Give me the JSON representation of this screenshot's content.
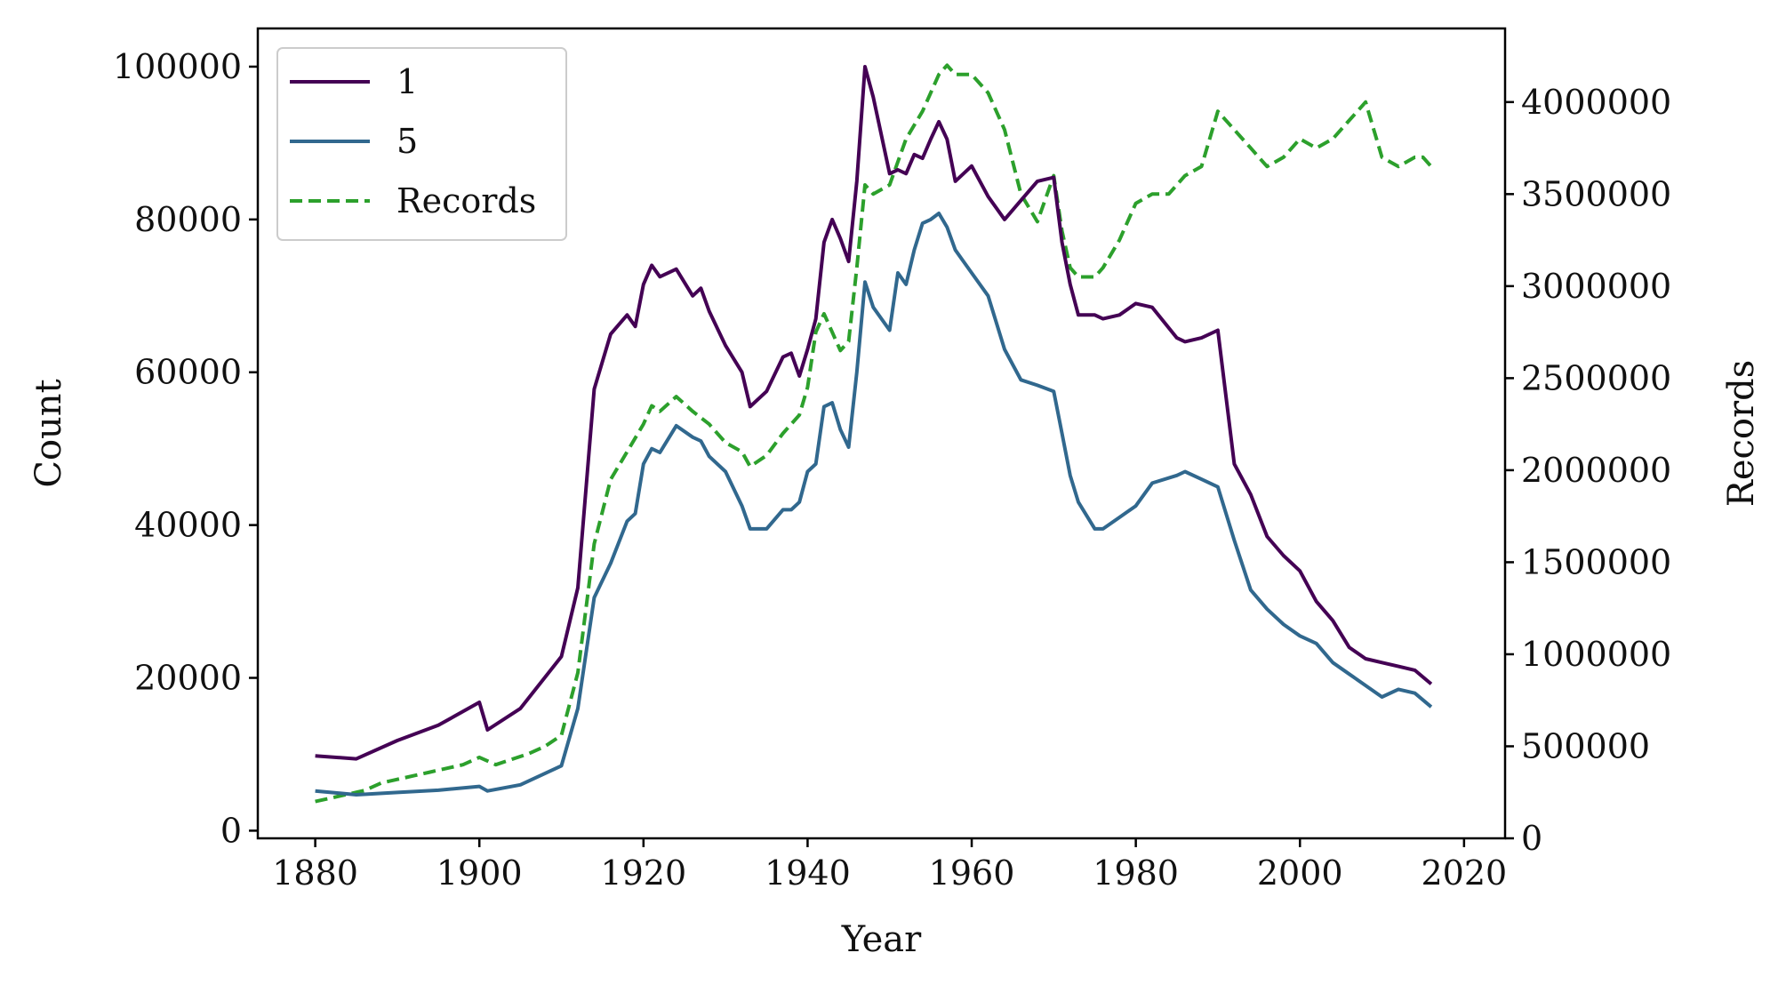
{
  "chart_data": {
    "type": "line",
    "xlabel": "Year",
    "ylabel": "Count",
    "y2label": "Records",
    "xlim": [
      1873,
      2025
    ],
    "ylim": [
      -1000,
      105000
    ],
    "y2lim": [
      0,
      4400000
    ],
    "xticks": [
      1880,
      1900,
      1920,
      1940,
      1960,
      1980,
      2000,
      2020
    ],
    "yticks": [
      0,
      20000,
      40000,
      60000,
      80000,
      100000
    ],
    "y2ticks": [
      0,
      500000,
      1000000,
      1500000,
      2000000,
      2500000,
      3000000,
      3500000,
      4000000
    ],
    "legend": {
      "location": "upper left"
    },
    "grid": false,
    "series": [
      {
        "name": "1",
        "axis": "left",
        "color": "#440154",
        "style": "solid",
        "x": [
          1880,
          1885,
          1890,
          1895,
          1900,
          1901,
          1905,
          1910,
          1912,
          1914,
          1916,
          1918,
          1919,
          1920,
          1921,
          1922,
          1924,
          1926,
          1927,
          1928,
          1930,
          1932,
          1933,
          1935,
          1937,
          1938,
          1939,
          1940,
          1941,
          1942,
          1943,
          1944,
          1945,
          1946,
          1947,
          1948,
          1950,
          1951,
          1952,
          1953,
          1954,
          1955,
          1956,
          1957,
          1958,
          1959,
          1960,
          1962,
          1964,
          1966,
          1968,
          1970,
          1971,
          1972,
          1973,
          1975,
          1976,
          1978,
          1980,
          1982,
          1985,
          1986,
          1988,
          1990,
          1992,
          1994,
          1996,
          1998,
          2000,
          2002,
          2004,
          2006,
          2008,
          2010,
          2012,
          2014,
          2016
        ],
        "y": [
          9800,
          9400,
          11800,
          13800,
          16800,
          13200,
          16000,
          22800,
          31800,
          57800,
          65000,
          67500,
          66000,
          71500,
          74000,
          72500,
          73500,
          70000,
          71000,
          68000,
          63500,
          60000,
          55500,
          57500,
          62000,
          62500,
          59500,
          63000,
          67000,
          77000,
          80000,
          77500,
          74500,
          85000,
          100000,
          96000,
          86000,
          86500,
          86000,
          88500,
          88000,
          90500,
          92800,
          90500,
          85000,
          86000,
          87000,
          83000,
          80000,
          82500,
          85000,
          85500,
          77000,
          71500,
          67500,
          67500,
          67000,
          67500,
          69000,
          68500,
          64500,
          64000,
          64500,
          65500,
          48000,
          44000,
          38500,
          36000,
          34000,
          30000,
          27500,
          24000,
          22500,
          22000,
          21500,
          21000,
          19200
        ]
      },
      {
        "name": "5",
        "axis": "left",
        "color": "#31688e",
        "style": "solid",
        "x": [
          1880,
          1885,
          1890,
          1895,
          1900,
          1901,
          1905,
          1910,
          1912,
          1914,
          1916,
          1918,
          1919,
          1920,
          1921,
          1922,
          1924,
          1926,
          1927,
          1928,
          1930,
          1932,
          1933,
          1935,
          1937,
          1938,
          1939,
          1940,
          1941,
          1942,
          1943,
          1944,
          1945,
          1946,
          1947,
          1948,
          1950,
          1951,
          1952,
          1953,
          1954,
          1955,
          1956,
          1957,
          1958,
          1959,
          1960,
          1962,
          1964,
          1966,
          1968,
          1970,
          1971,
          1972,
          1973,
          1975,
          1976,
          1978,
          1980,
          1982,
          1985,
          1986,
          1988,
          1990,
          1992,
          1994,
          1996,
          1998,
          2000,
          2002,
          2004,
          2006,
          2008,
          2010,
          2012,
          2014,
          2016
        ],
        "y": [
          5200,
          4700,
          5000,
          5300,
          5800,
          5200,
          6000,
          8500,
          16000,
          30500,
          35000,
          40500,
          41500,
          48000,
          50000,
          49500,
          53000,
          51500,
          51000,
          49000,
          47000,
          42500,
          39500,
          39500,
          42000,
          42000,
          43000,
          47000,
          48000,
          55500,
          56000,
          52500,
          50200,
          60000,
          71800,
          68500,
          65500,
          73000,
          71500,
          76000,
          79500,
          80000,
          80800,
          79000,
          76000,
          74500,
          73000,
          70000,
          63000,
          59000,
          58300,
          57500,
          52000,
          46500,
          43000,
          39500,
          39500,
          41000,
          42500,
          45500,
          46500,
          47000,
          46000,
          45000,
          38000,
          31500,
          29000,
          27000,
          25500,
          24500,
          22000,
          20500,
          19000,
          17500,
          18500,
          18000,
          16200
        ]
      },
      {
        "name": "Records",
        "axis": "right",
        "color": "#2ca02c",
        "style": "dashed",
        "x": [
          1880,
          1882,
          1884,
          1886,
          1888,
          1890,
          1892,
          1894,
          1896,
          1898,
          1900,
          1902,
          1904,
          1906,
          1908,
          1910,
          1912,
          1914,
          1916,
          1918,
          1920,
          1921,
          1922,
          1924,
          1926,
          1928,
          1930,
          1932,
          1933,
          1935,
          1937,
          1939,
          1940,
          1941,
          1942,
          1943,
          1944,
          1945,
          1946,
          1947,
          1948,
          1950,
          1952,
          1954,
          1956,
          1957,
          1958,
          1960,
          1962,
          1964,
          1966,
          1968,
          1970,
          1971,
          1972,
          1973,
          1975,
          1976,
          1978,
          1980,
          1982,
          1984,
          1986,
          1988,
          1990,
          1992,
          1994,
          1996,
          1998,
          2000,
          2002,
          2004,
          2006,
          2007,
          2008,
          2010,
          2012,
          2014,
          2015,
          2016
        ],
        "y": [
          200000,
          220000,
          240000,
          260000,
          300000,
          320000,
          340000,
          360000,
          380000,
          400000,
          440000,
          400000,
          430000,
          460000,
          500000,
          560000,
          900000,
          1600000,
          1950000,
          2100000,
          2250000,
          2350000,
          2320000,
          2400000,
          2320000,
          2250000,
          2150000,
          2100000,
          2020000,
          2080000,
          2200000,
          2300000,
          2450000,
          2750000,
          2850000,
          2750000,
          2650000,
          2700000,
          3100000,
          3550000,
          3500000,
          3550000,
          3800000,
          3950000,
          4150000,
          4200000,
          4150000,
          4150000,
          4050000,
          3850000,
          3500000,
          3350000,
          3600000,
          3300000,
          3100000,
          3050000,
          3050000,
          3100000,
          3250000,
          3450000,
          3500000,
          3500000,
          3600000,
          3650000,
          3950000,
          3850000,
          3750000,
          3650000,
          3700000,
          3800000,
          3750000,
          3800000,
          3900000,
          3950000,
          4000000,
          3700000,
          3650000,
          3700000,
          3700000,
          3650000
        ]
      }
    ]
  }
}
